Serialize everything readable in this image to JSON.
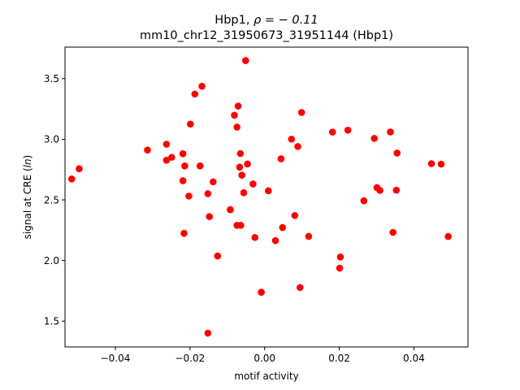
{
  "chart_data": {
    "type": "scatter",
    "title_line1_prefix": "Hbp1, ",
    "title_line1_rho": "ρ = − 0.11",
    "title_line2": "mm10_chr12_31950673_31951144 (Hbp1)",
    "xlabel": "motif activity",
    "ylabel_prefix": "signal at CRE (",
    "ylabel_italic": "ln",
    "ylabel_suffix": ")",
    "xlim": [
      -0.0535,
      0.0545
    ],
    "ylim": [
      1.287,
      3.76
    ],
    "xticks": [
      -0.04,
      -0.02,
      0.0,
      0.02,
      0.04
    ],
    "xtick_labels": [
      "−0.04",
      "−0.02",
      "0.00",
      "0.02",
      "0.04"
    ],
    "yticks": [
      1.5,
      2.0,
      2.5,
      3.0,
      3.5
    ],
    "ytick_labels": [
      "1.5",
      "2.0",
      "2.5",
      "3.0",
      "3.5"
    ],
    "grid": false,
    "marker_color": "#ff0000",
    "points": [
      {
        "x": -0.0517,
        "y": 2.672
      },
      {
        "x": -0.0497,
        "y": 2.757
      },
      {
        "x": -0.0314,
        "y": 2.911
      },
      {
        "x": -0.0263,
        "y": 2.959
      },
      {
        "x": -0.0263,
        "y": 2.827
      },
      {
        "x": -0.0249,
        "y": 2.851
      },
      {
        "x": -0.0219,
        "y": 2.881
      },
      {
        "x": -0.0219,
        "y": 2.658
      },
      {
        "x": -0.0214,
        "y": 2.78
      },
      {
        "x": -0.0216,
        "y": 2.224
      },
      {
        "x": -0.0203,
        "y": 2.531
      },
      {
        "x": -0.0199,
        "y": 3.125
      },
      {
        "x": -0.0187,
        "y": 3.373
      },
      {
        "x": -0.0168,
        "y": 3.437
      },
      {
        "x": -0.0173,
        "y": 2.78
      },
      {
        "x": -0.0152,
        "y": 2.551
      },
      {
        "x": -0.0148,
        "y": 2.362
      },
      {
        "x": -0.0138,
        "y": 2.649
      },
      {
        "x": -0.0126,
        "y": 2.037
      },
      {
        "x": -0.0152,
        "y": 1.401
      },
      {
        "x": -0.0092,
        "y": 2.419
      },
      {
        "x": -0.0081,
        "y": 3.198
      },
      {
        "x": -0.0071,
        "y": 3.274
      },
      {
        "x": -0.0074,
        "y": 3.1
      },
      {
        "x": -0.0065,
        "y": 2.882
      },
      {
        "x": -0.0067,
        "y": 2.77
      },
      {
        "x": -0.0061,
        "y": 2.704
      },
      {
        "x": -0.0074,
        "y": 2.29
      },
      {
        "x": -0.0064,
        "y": 2.29
      },
      {
        "x": -0.0056,
        "y": 2.559
      },
      {
        "x": -0.0046,
        "y": 2.796
      },
      {
        "x": -0.0051,
        "y": 3.649
      },
      {
        "x": -0.0031,
        "y": 2.631
      },
      {
        "x": -0.0026,
        "y": 2.19
      },
      {
        "x": -0.0009,
        "y": 1.738
      },
      {
        "x": 0.001,
        "y": 2.575
      },
      {
        "x": 0.0029,
        "y": 2.164
      },
      {
        "x": 0.0044,
        "y": 2.839
      },
      {
        "x": 0.0048,
        "y": 2.272
      },
      {
        "x": 0.0072,
        "y": 3.001
      },
      {
        "x": 0.0081,
        "y": 2.371
      },
      {
        "x": 0.0089,
        "y": 2.94
      },
      {
        "x": 0.0099,
        "y": 3.221
      },
      {
        "x": 0.0095,
        "y": 1.777
      },
      {
        "x": 0.0118,
        "y": 2.199
      },
      {
        "x": 0.0182,
        "y": 3.059
      },
      {
        "x": 0.0203,
        "y": 2.029
      },
      {
        "x": 0.0201,
        "y": 1.937
      },
      {
        "x": 0.0223,
        "y": 3.075
      },
      {
        "x": 0.0266,
        "y": 2.493
      },
      {
        "x": 0.0294,
        "y": 3.007
      },
      {
        "x": 0.0301,
        "y": 2.601
      },
      {
        "x": 0.0309,
        "y": 2.578
      },
      {
        "x": 0.0337,
        "y": 3.06
      },
      {
        "x": 0.0355,
        "y": 2.886
      },
      {
        "x": 0.0353,
        "y": 2.58
      },
      {
        "x": 0.0344,
        "y": 2.232
      },
      {
        "x": 0.0447,
        "y": 2.799
      },
      {
        "x": 0.0473,
        "y": 2.795
      },
      {
        "x": 0.0492,
        "y": 2.198
      }
    ]
  }
}
